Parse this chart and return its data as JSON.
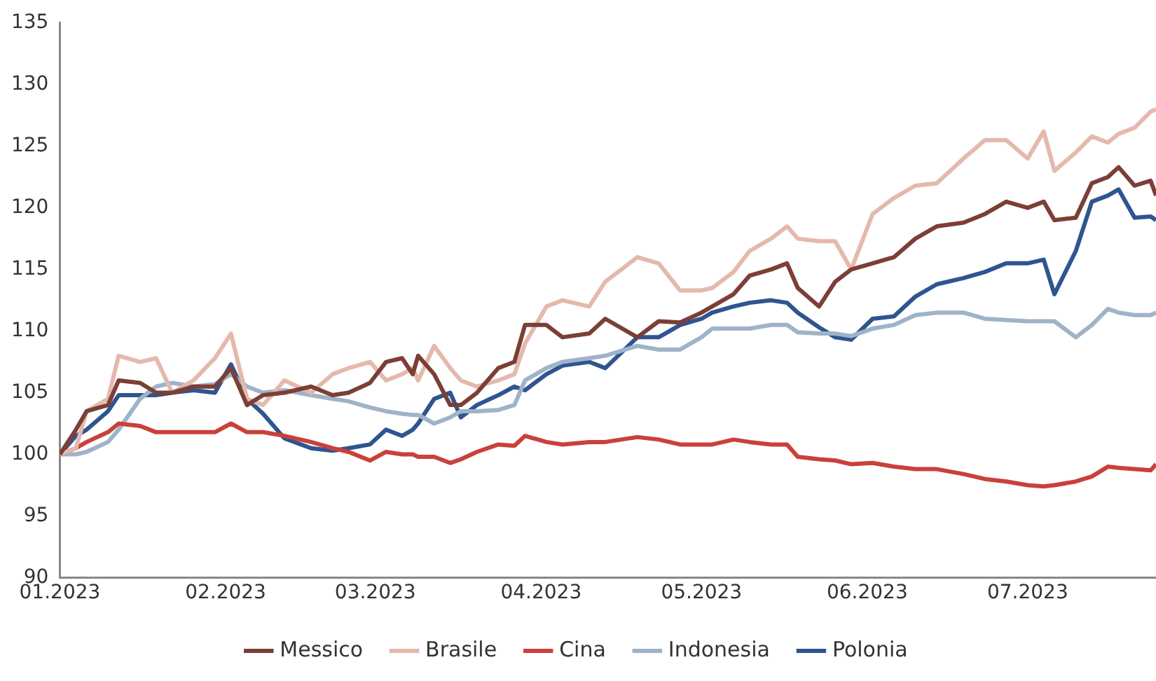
{
  "chart_data": {
    "type": "line",
    "x": [
      "2023-01-01",
      "2023-01-04",
      "2023-01-06",
      "2023-01-10",
      "2023-01-12",
      "2023-01-16",
      "2023-01-19",
      "2023-01-22",
      "2023-01-26",
      "2023-01-30",
      "2023-02-02",
      "2023-02-05",
      "2023-02-08",
      "2023-02-12",
      "2023-02-17",
      "2023-02-21",
      "2023-02-24",
      "2023-02-28",
      "2023-03-03",
      "2023-03-06",
      "2023-03-08",
      "2023-03-09",
      "2023-03-12",
      "2023-03-15",
      "2023-03-17",
      "2023-03-20",
      "2023-03-24",
      "2023-03-27",
      "2023-03-29",
      "2023-04-02",
      "2023-04-05",
      "2023-04-10",
      "2023-04-13",
      "2023-04-19",
      "2023-04-23",
      "2023-04-27",
      "2023-05-01",
      "2023-05-03",
      "2023-05-07",
      "2023-05-10",
      "2023-05-14",
      "2023-05-17",
      "2023-05-19",
      "2023-05-23",
      "2023-05-26",
      "2023-05-29",
      "2023-06-02",
      "2023-06-06",
      "2023-06-10",
      "2023-06-14",
      "2023-06-19",
      "2023-06-23",
      "2023-06-27",
      "2023-07-01",
      "2023-07-04",
      "2023-07-06",
      "2023-07-10",
      "2023-07-13",
      "2023-07-16",
      "2023-07-18",
      "2023-07-21",
      "2023-07-24",
      "2023-07-25"
    ],
    "series": [
      {
        "name": "Messico",
        "color": "#7b3f36",
        "values": [
          100,
          102,
          103.5,
          104,
          106,
          105.8,
          105,
          105,
          105.5,
          105.5,
          107,
          104,
          104.8,
          105,
          105.5,
          104.8,
          105,
          105.8,
          107.5,
          107.8,
          106.5,
          108,
          106.5,
          104,
          104,
          105,
          107,
          107.5,
          110.5,
          110.5,
          109.5,
          109.8,
          111,
          109.5,
          110.8,
          110.7,
          111.5,
          112,
          113,
          114.5,
          115,
          115.5,
          113.5,
          112,
          114,
          115,
          115.5,
          116,
          117.5,
          118.5,
          118.8,
          119.5,
          120.5,
          120,
          120.5,
          119,
          119.2,
          122,
          122.5,
          123.3,
          121.8,
          122.2,
          121
        ]
      },
      {
        "name": "Brasile",
        "color": "#e4b9ac",
        "values": [
          100,
          100.5,
          103.5,
          104.5,
          108,
          107.5,
          107.8,
          105,
          106,
          107.8,
          109.8,
          104.5,
          104,
          106,
          105,
          106.5,
          107,
          107.5,
          106,
          106.5,
          107,
          106,
          108.8,
          107,
          106,
          105.5,
          106,
          106.5,
          109,
          112,
          112.5,
          112,
          114,
          116,
          115.5,
          113.3,
          113.3,
          113.5,
          114.8,
          116.5,
          117.5,
          118.5,
          117.5,
          117.3,
          117.3,
          115,
          119.5,
          120.8,
          121.8,
          122,
          124,
          125.5,
          125.5,
          124,
          126.2,
          123,
          124.5,
          125.8,
          125.3,
          126,
          126.5,
          127.8,
          128
        ]
      },
      {
        "name": "Cina",
        "color": "#c9413a",
        "values": [
          100,
          100.5,
          101,
          101.8,
          102.5,
          102.3,
          101.8,
          101.8,
          101.8,
          101.8,
          102.5,
          101.8,
          101.8,
          101.5,
          101,
          100.5,
          100.2,
          99.5,
          100.2,
          100,
          100,
          99.8,
          99.8,
          99.3,
          99.6,
          100.2,
          100.8,
          100.7,
          101.5,
          101,
          100.8,
          101,
          101,
          101.4,
          101.2,
          100.8,
          100.8,
          100.8,
          101.2,
          101,
          100.8,
          100.8,
          99.8,
          99.6,
          99.5,
          99.2,
          99.3,
          99,
          98.8,
          98.8,
          98.4,
          98,
          97.8,
          97.5,
          97.4,
          97.5,
          97.8,
          98.2,
          99,
          98.9,
          98.8,
          98.7,
          99.2
        ]
      },
      {
        "name": "Indonesia",
        "color": "#9fb3c8",
        "values": [
          100,
          100,
          100.2,
          101,
          102,
          104.5,
          105.5,
          105.8,
          105.5,
          105.7,
          106.5,
          105.5,
          105,
          105.2,
          104.8,
          104.5,
          104.3,
          103.8,
          103.5,
          103.3,
          103.2,
          103.2,
          102.5,
          103,
          103.5,
          103.5,
          103.6,
          104,
          106,
          107,
          107.5,
          107.8,
          108,
          108.8,
          108.5,
          108.5,
          109.5,
          110.2,
          110.2,
          110.2,
          110.5,
          110.5,
          109.9,
          109.8,
          109.8,
          109.6,
          110.2,
          110.5,
          111.3,
          111.5,
          111.5,
          111,
          110.9,
          110.8,
          110.8,
          110.8,
          109.5,
          110.5,
          111.8,
          111.5,
          111.3,
          111.3,
          111.5
        ]
      },
      {
        "name": "Polonia",
        "color": "#2e5590",
        "values": [
          100,
          101.5,
          102,
          103.5,
          104.8,
          104.8,
          104.8,
          105,
          105.2,
          105,
          107.3,
          104.5,
          103.3,
          101.3,
          100.5,
          100.3,
          100.5,
          100.8,
          102,
          101.5,
          102,
          102.5,
          104.5,
          105,
          103,
          104,
          104.8,
          105.5,
          105.2,
          106.5,
          107.2,
          107.5,
          107,
          109.5,
          109.5,
          110.5,
          111,
          111.5,
          112,
          112.3,
          112.5,
          112.3,
          111.5,
          110.3,
          109.5,
          109.3,
          111,
          111.2,
          112.8,
          113.8,
          114.3,
          114.8,
          115.5,
          115.5,
          115.8,
          113,
          116.5,
          120.5,
          121,
          121.5,
          119.2,
          119.3,
          119
        ]
      }
    ],
    "xlim": [
      "2023-01-01",
      "2023-07-25"
    ],
    "xticks": [
      {
        "value": "2023-01-01",
        "label": "01.2023"
      },
      {
        "value": "2023-02-01",
        "label": "02.2023"
      },
      {
        "value": "2023-03-01",
        "label": "03.2023"
      },
      {
        "value": "2023-04-01",
        "label": "04.2023"
      },
      {
        "value": "2023-05-01",
        "label": "05.2023"
      },
      {
        "value": "2023-06-01",
        "label": "06.2023"
      },
      {
        "value": "2023-07-01",
        "label": "07.2023"
      }
    ],
    "ylim": [
      90,
      135
    ],
    "yticks": [
      90,
      95,
      100,
      105,
      110,
      115,
      120,
      125,
      130,
      135
    ],
    "grid": false,
    "legend": "bottom",
    "marker": "none",
    "line_style": "solid"
  }
}
